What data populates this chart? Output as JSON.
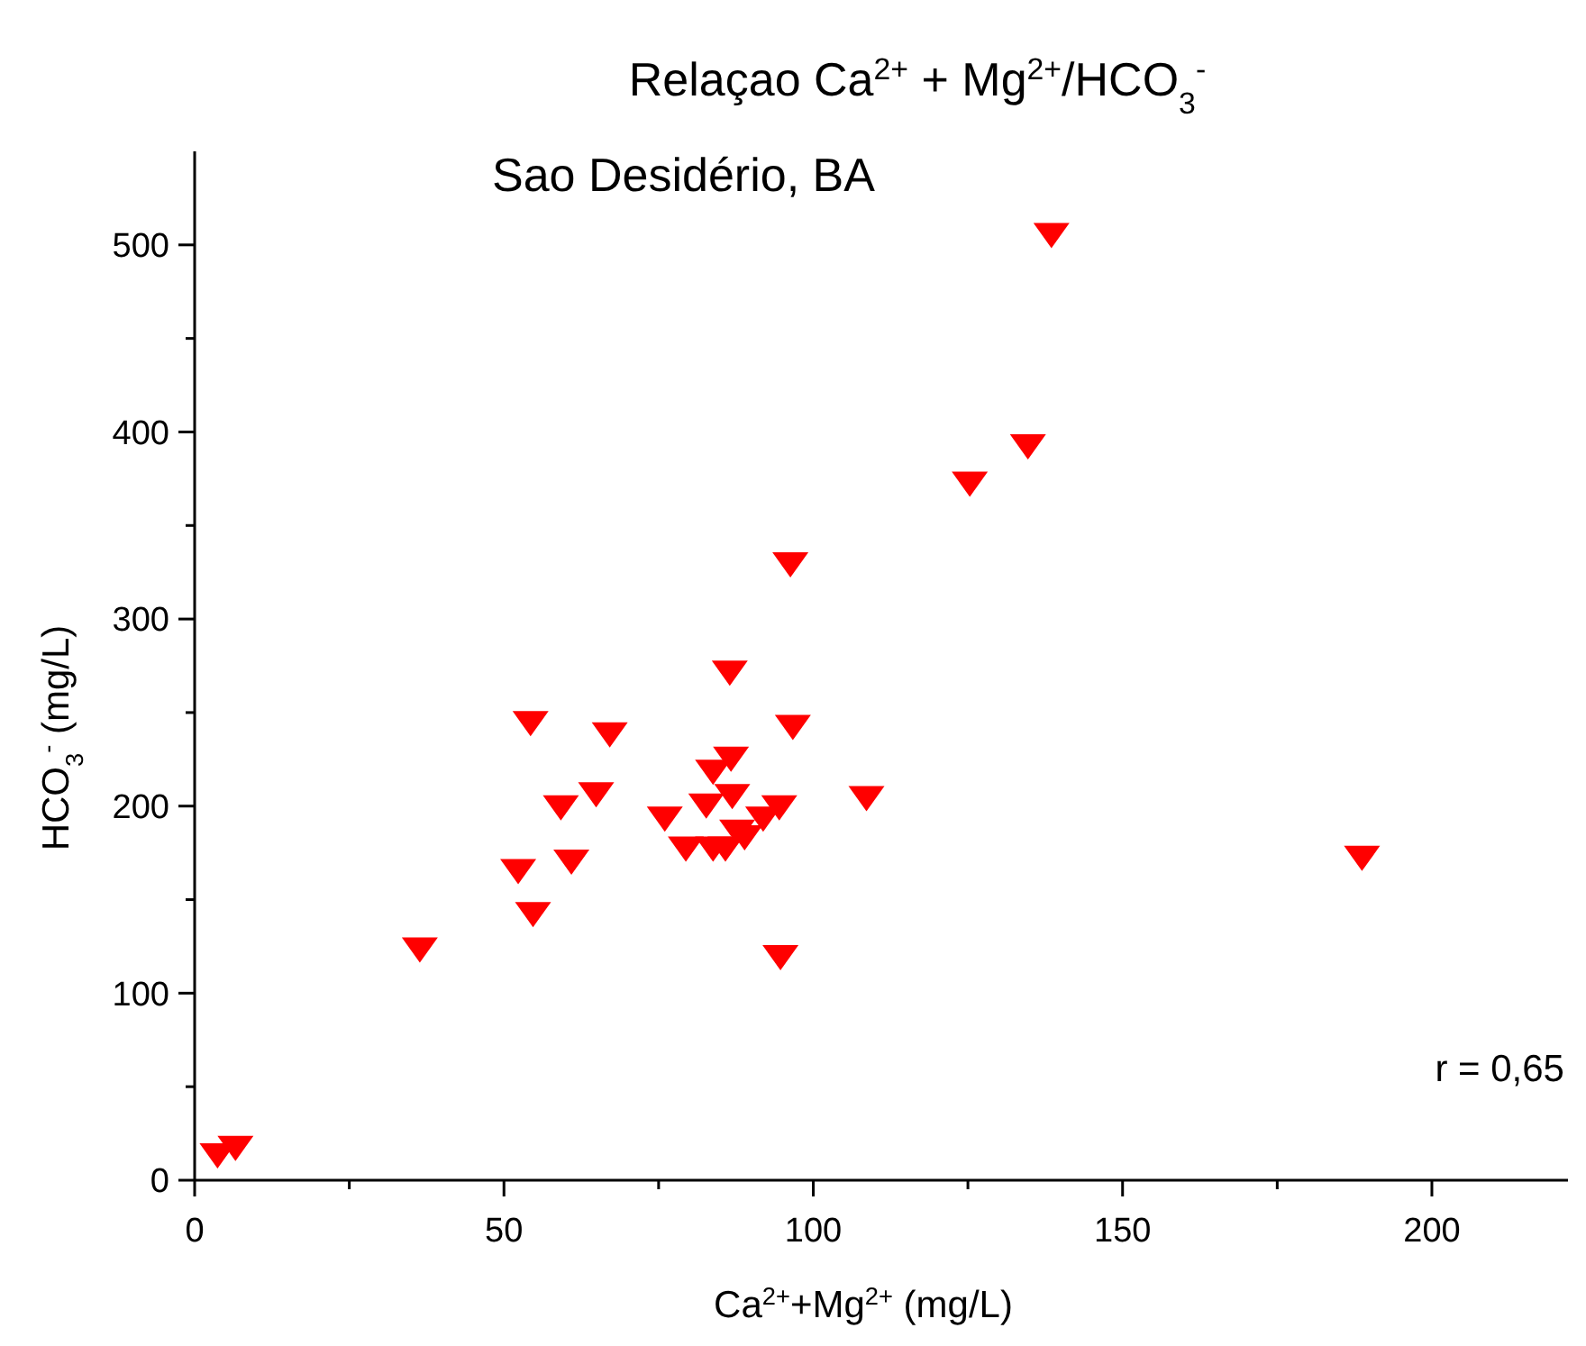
{
  "chart_data": {
    "type": "scatter",
    "title": "Relaçao Ca$^{2+}$ + Mg$^{2+}$/HCO$_{3}$$^{-}$",
    "subtitle": "Sao Desidério, BA",
    "xlabel": "Ca$^{2+}$+Mg$^{2+}$ (mg/L)",
    "ylabel": "HCO$_{3}$$^{-}$ (mg/L)",
    "annotations": [
      "r = 0,65"
    ],
    "xlim": [
      0,
      222
    ],
    "ylim": [
      0,
      550
    ],
    "xticks": [
      0,
      {
        "value": 25,
        "label": null
      },
      50,
      {
        "value": 75,
        "label": null
      },
      100,
      {
        "value": 125,
        "label": null
      },
      150,
      {
        "value": 175,
        "label": null
      },
      200
    ],
    "yticks": [
      0,
      {
        "value": 50,
        "label": null
      },
      100,
      {
        "value": 150,
        "label": null
      },
      200,
      {
        "value": 250,
        "label": null
      },
      300,
      {
        "value": 350,
        "label": null
      },
      400,
      {
        "value": 450,
        "label": null
      },
      500
    ],
    "grid": false,
    "marker": "triangle",
    "series": [
      {
        "color": "#ff0000",
        "x": [
          3.7,
          6.6,
          36.4,
          52.3,
          54.7,
          54.3,
          59.2,
          60.9,
          64.9,
          67.1,
          86.5,
          96.7,
          86.7,
          83.8,
          86.9,
          82.7,
          76.0,
          79.4,
          83.8,
          85.8,
          87.7,
          88.9,
          91.9,
          94.5,
          108.6,
          94.7,
          96.3,
          138.5,
          134.7,
          125.3,
          188.7
        ],
        "values": [
          13,
          17,
          123,
          165,
          142,
          244,
          199,
          170,
          206,
          238,
          271,
          242,
          225,
          218,
          205,
          200,
          193,
          177,
          177,
          177,
          186,
          183,
          193,
          199,
          204,
          119,
          329,
          505,
          392,
          372,
          172
        ]
      }
    ]
  }
}
